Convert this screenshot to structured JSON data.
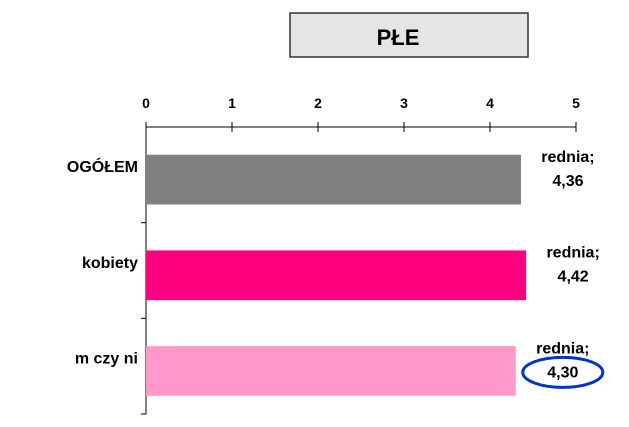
{
  "chart_data": {
    "type": "bar",
    "orientation": "horizontal",
    "title": "PŁE",
    "categories": [
      "OGÓŁEM",
      "kobiety",
      "m czy ni"
    ],
    "values": [
      4.36,
      4.42,
      4.3
    ],
    "data_labels": [
      {
        "line1": "rednia;",
        "line2": "4,36"
      },
      {
        "line1": "rednia;",
        "line2": "4,42"
      },
      {
        "line1": "rednia;",
        "line2": "4,30"
      }
    ],
    "bar_colors": [
      "#808080",
      "#ff0080",
      "#ff99cc"
    ],
    "highlight_index": 2,
    "highlight_color": "#0033cc",
    "xlim": [
      0,
      5
    ],
    "x_ticks": [
      0,
      1,
      2,
      3,
      4,
      5
    ],
    "x_tick_labels": [
      "0",
      "1",
      "2",
      "3",
      "4",
      "5"
    ],
    "x_axis_position": "top",
    "grid": false,
    "legend": "none"
  }
}
